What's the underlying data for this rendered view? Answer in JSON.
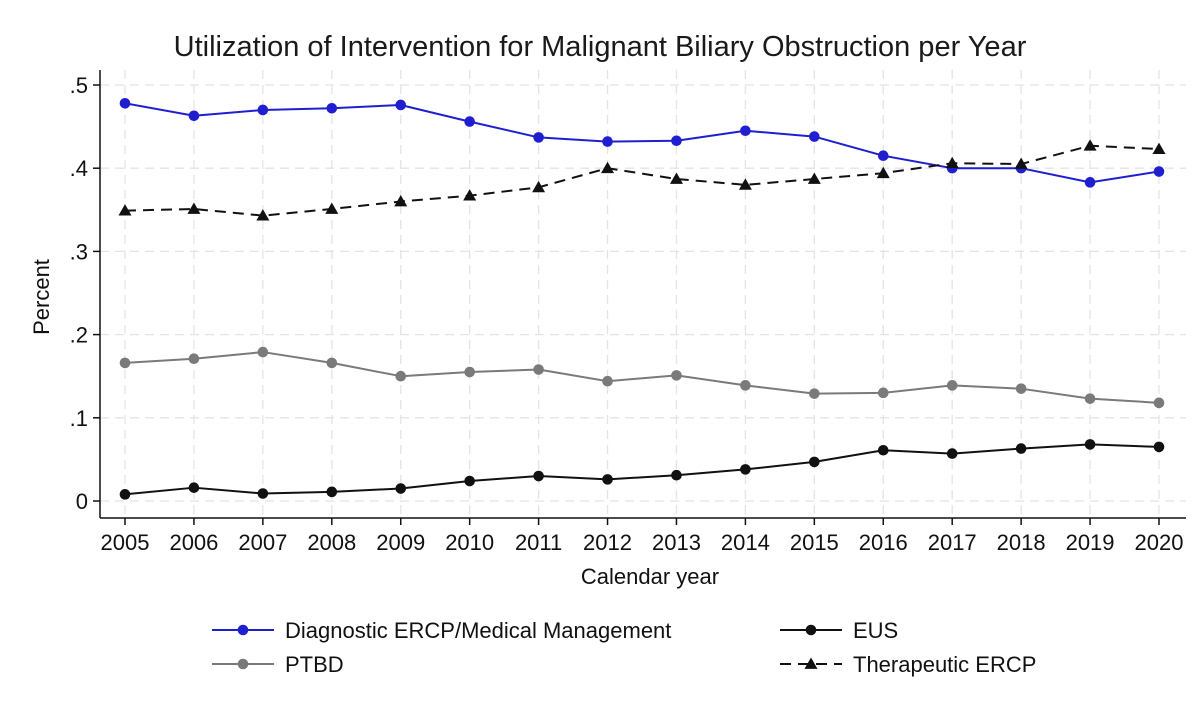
{
  "chart_data": {
    "type": "line",
    "title": "Utilization of Intervention for Malignant Biliary Obstruction per Year",
    "xlabel": "Calendar year",
    "ylabel": "Percent",
    "x": [
      2005,
      2006,
      2007,
      2008,
      2009,
      2010,
      2011,
      2012,
      2013,
      2014,
      2015,
      2016,
      2017,
      2018,
      2019,
      2020
    ],
    "ylim": [
      0,
      0.5
    ],
    "yticks": [
      0,
      0.1,
      0.2,
      0.3,
      0.4,
      0.5
    ],
    "ytick_labels": [
      "0",
      ".1",
      ".2",
      ".3",
      ".4",
      ".5"
    ],
    "grid": true,
    "legend_position": "bottom",
    "series": [
      {
        "name": "Diagnostic ERCP/Medical Management",
        "color": "#1f1fd0",
        "marker": "circle",
        "dash": "solid",
        "values": [
          0.478,
          0.463,
          0.47,
          0.472,
          0.476,
          0.456,
          0.437,
          0.432,
          0.433,
          0.445,
          0.438,
          0.415,
          0.4,
          0.4,
          0.383,
          0.396
        ]
      },
      {
        "name": "EUS",
        "color": "#111111",
        "marker": "circle",
        "dash": "solid",
        "values": [
          0.008,
          0.016,
          0.009,
          0.011,
          0.015,
          0.024,
          0.03,
          0.026,
          0.031,
          0.038,
          0.047,
          0.061,
          0.057,
          0.063,
          0.068,
          0.065
        ]
      },
      {
        "name": "PTBD",
        "color": "#7a7a7a",
        "marker": "circle",
        "dash": "solid",
        "values": [
          0.166,
          0.171,
          0.179,
          0.166,
          0.15,
          0.155,
          0.158,
          0.144,
          0.151,
          0.139,
          0.129,
          0.13,
          0.139,
          0.135,
          0.123,
          0.118
        ]
      },
      {
        "name": "Therapeutic ERCP",
        "color": "#111111",
        "marker": "triangle",
        "dash": "dashed",
        "values": [
          0.349,
          0.351,
          0.343,
          0.351,
          0.36,
          0.367,
          0.377,
          0.4,
          0.387,
          0.38,
          0.387,
          0.394,
          0.406,
          0.405,
          0.427,
          0.423
        ]
      }
    ]
  }
}
